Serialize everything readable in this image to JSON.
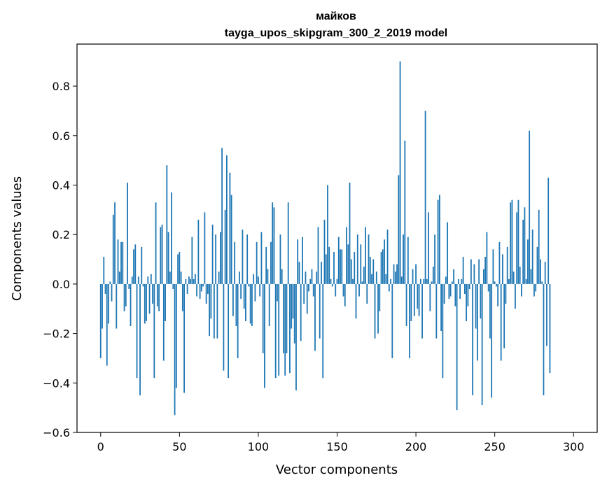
{
  "chart_data": {
    "type": "bar",
    "title": "майков",
    "subtitle": "tayga_upos_skipgram_300_2_2019 model",
    "xlabel": "Vector components",
    "ylabel": "Components values",
    "xlim": [
      -15,
      315
    ],
    "ylim": [
      -0.6,
      0.97
    ],
    "xticks": [
      0,
      50,
      100,
      150,
      200,
      250,
      300
    ],
    "yticks": [
      -0.6,
      -0.4,
      -0.2,
      0.0,
      0.2,
      0.4,
      0.6,
      0.8
    ],
    "ytick_labels": [
      "−0.6",
      "−0.4",
      "−0.2",
      "0.0",
      "0.2",
      "0.4",
      "0.6",
      "0.8"
    ],
    "xtick_labels": [
      "0",
      "50",
      "100",
      "150",
      "200",
      "250",
      "300"
    ],
    "bar_color": "#1f77b4",
    "values": [
      -0.3,
      -0.18,
      0.11,
      -0.04,
      -0.33,
      -0.16,
      0.01,
      -0.07,
      0.28,
      0.33,
      -0.18,
      0.18,
      0.05,
      0.17,
      0.17,
      -0.11,
      -0.09,
      0.41,
      -0.02,
      -0.17,
      0.03,
      0.14,
      0.16,
      -0.38,
      0.03,
      -0.45,
      0.15,
      -0.01,
      -0.16,
      -0.15,
      0.03,
      -0.12,
      0.04,
      -0.08,
      -0.38,
      0.33,
      -0.09,
      -0.11,
      0.23,
      0.24,
      -0.31,
      -0.15,
      0.48,
      0.21,
      0.05,
      0.37,
      -0.02,
      -0.53,
      -0.42,
      0.12,
      0.13,
      0.05,
      -0.11,
      -0.44,
      0.02,
      -0.04,
      0.03,
      0.02,
      0.19,
      0.02,
      0.04,
      -0.05,
      0.26,
      -0.06,
      -0.03,
      -0.01,
      0.29,
      -0.08,
      -0.04,
      -0.21,
      -0.14,
      0.24,
      -0.22,
      0.2,
      -0.22,
      0.05,
      0.21,
      0.55,
      -0.35,
      0.3,
      0.52,
      -0.38,
      0.45,
      0.36,
      -0.13,
      0.17,
      -0.17,
      -0.3,
      0.05,
      -0.06,
      0.22,
      -0.1,
      -0.15,
      0.2,
      -0.01,
      -0.16,
      -0.17,
      0.04,
      -0.07,
      0.17,
      0.03,
      -0.05,
      0.21,
      -0.28,
      -0.42,
      0.15,
      0.06,
      -0.17,
      0.17,
      0.33,
      0.31,
      -0.38,
      -0.07,
      -0.37,
      0.2,
      0.06,
      -0.28,
      -0.37,
      -0.28,
      0.33,
      -0.36,
      -0.18,
      -0.14,
      -0.24,
      -0.43,
      0.18,
      0.09,
      -0.23,
      0.19,
      -0.08,
      0.05,
      -0.12,
      -0.03,
      0.02,
      0.06,
      -0.05,
      -0.27,
      0.05,
      0.23,
      -0.22,
      0.09,
      -0.38,
      0.26,
      0.12,
      0.4,
      0.15,
      0.02,
      -0.01,
      0.13,
      -0.05,
      0.02,
      0.19,
      0.14,
      0.14,
      -0.05,
      -0.09,
      0.23,
      0.16,
      0.41,
      0.1,
      0.02,
      0.13,
      -0.14,
      0.2,
      -0.05,
      0.16,
      0.01,
      0.07,
      0.23,
      -0.08,
      0.2,
      0.11,
      0.04,
      0.1,
      -0.22,
      0.05,
      -0.2,
      -0.11,
      0.13,
      0.14,
      0.18,
      0.04,
      0.22,
      -0.03,
      0.02,
      -0.3,
      0.08,
      0.05,
      0.08,
      0.44,
      0.9,
      0.03,
      0.2,
      0.58,
      -0.17,
      0.19,
      -0.3,
      -0.15,
      0.06,
      -0.13,
      0.08,
      -0.1,
      -0.13,
      0.02,
      -0.22,
      0.02,
      0.7,
      0.02,
      0.29,
      -0.11,
      0.01,
      0.07,
      0.2,
      -0.22,
      0.34,
      0.36,
      -0.19,
      -0.38,
      -0.08,
      0.03,
      0.25,
      -0.06,
      -0.05,
      0.01,
      0.06,
      -0.09,
      -0.51,
      0.02,
      -0.06,
      0.02,
      0.11,
      -0.04,
      -0.15,
      -0.09,
      -0.02,
      0.1,
      -0.45,
      0.08,
      -0.18,
      -0.31,
      0.1,
      -0.14,
      -0.49,
      0.06,
      0.11,
      0.21,
      -0.03,
      -0.22,
      -0.46,
      0.14,
      0.01,
      -0.01,
      -0.09,
      0.17,
      -0.31,
      0.12,
      -0.26,
      -0.08,
      0.15,
      0.02,
      0.33,
      0.34,
      0.05,
      -0.1,
      0.29,
      0.34,
      0.07,
      -0.05,
      0.26,
      0.31,
      0.02,
      0.18,
      0.62,
      0.06,
      0.22,
      -0.05,
      -0.03,
      0.15,
      0.3,
      0.1,
      0.01,
      -0.45,
      0.09,
      -0.25,
      0.43,
      -0.36
    ]
  }
}
